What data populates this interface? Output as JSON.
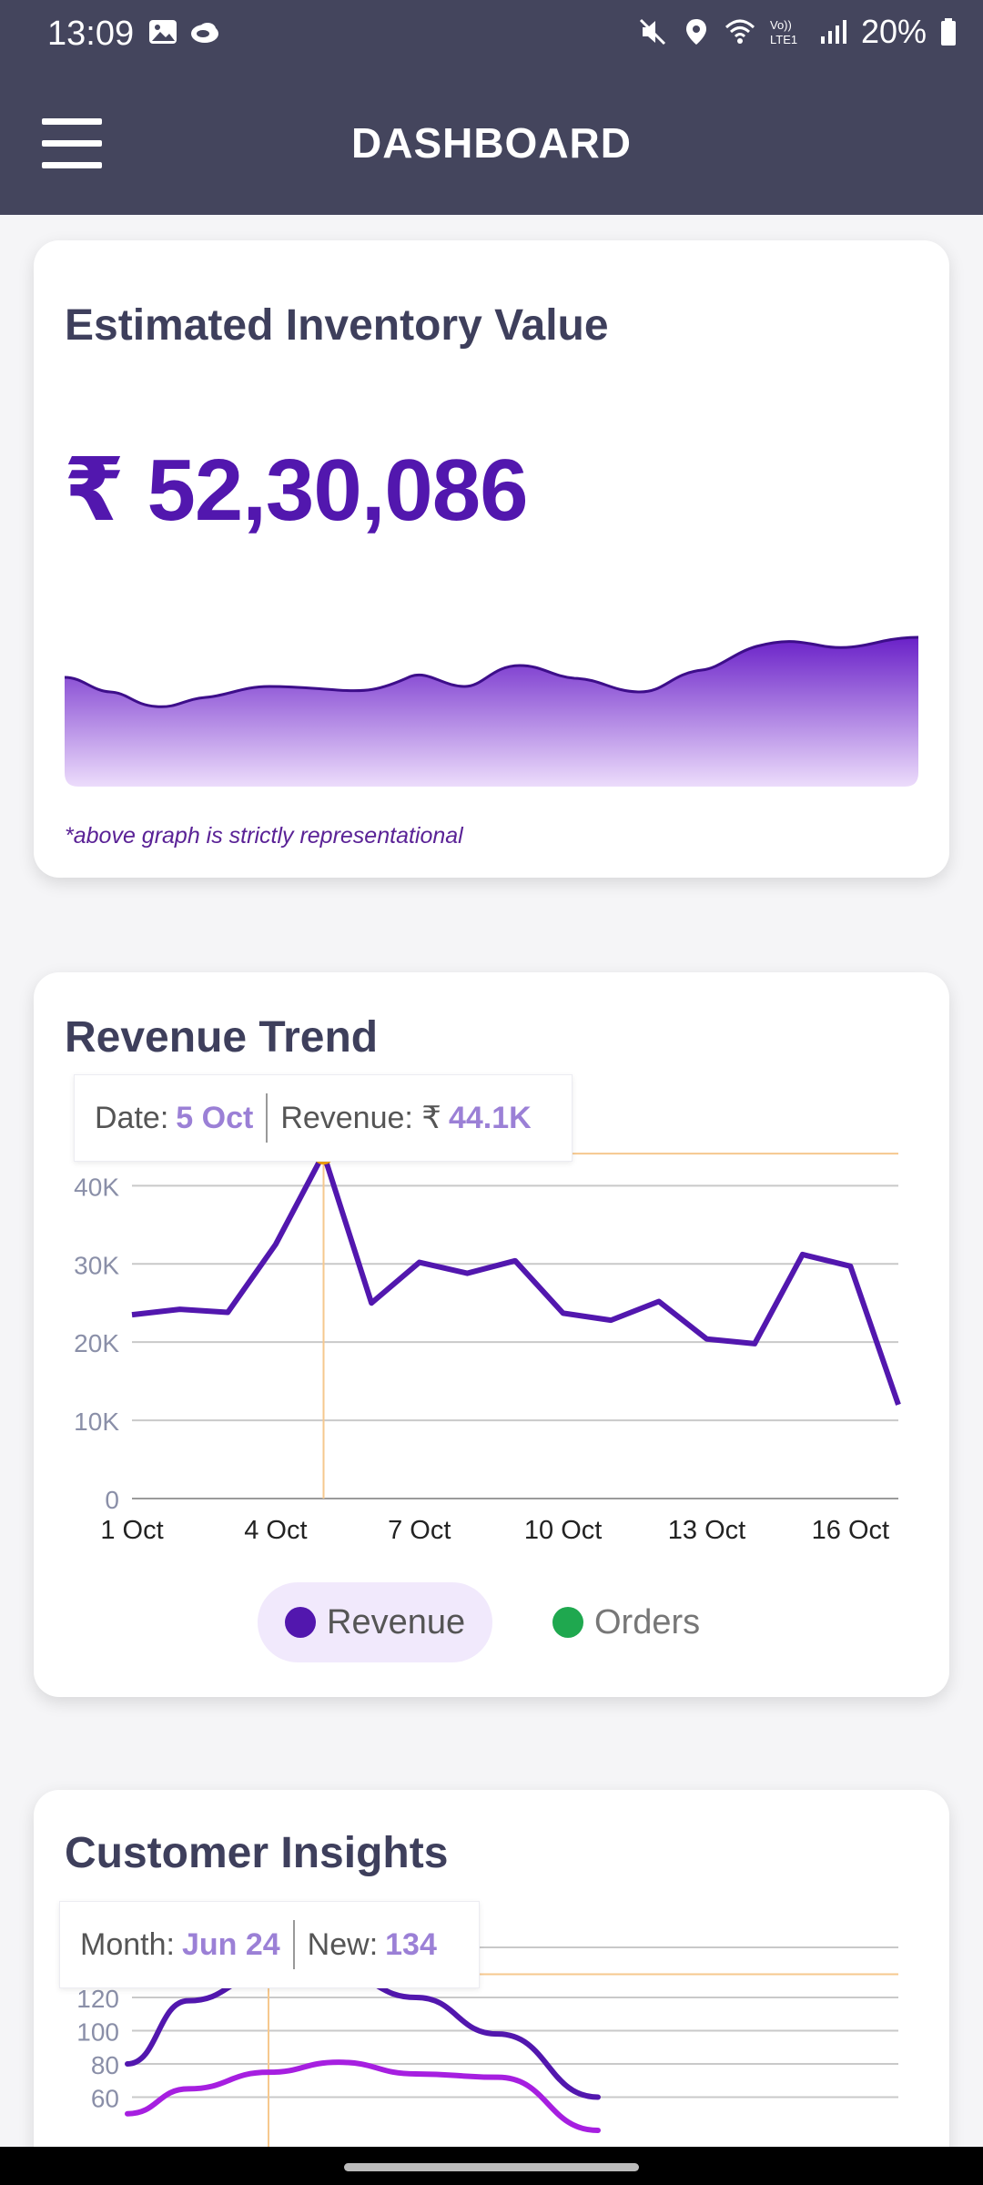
{
  "status_bar": {
    "time": "13:09",
    "battery": "20%",
    "icons": [
      "image-icon",
      "cloud-icon",
      "mute-icon",
      "location-icon",
      "wifi-icon",
      "volte-icon",
      "signal-icon",
      "battery-icon"
    ]
  },
  "app_bar": {
    "title": "DASHBOARD",
    "menu_icon": "hamburger-menu-icon"
  },
  "inventory": {
    "title": "Estimated Inventory Value",
    "value": "₹ 52,30,086",
    "note": "*above graph is strictly representational"
  },
  "revenue": {
    "title": "Revenue Trend",
    "tooltip": {
      "date_label": "Date:",
      "date_value": "5 Oct",
      "revenue_label": "Revenue: ₹",
      "revenue_value": "44.1K"
    },
    "legend": [
      {
        "label": "Revenue",
        "color": "#5217ae",
        "active": true
      },
      {
        "label": "Orders",
        "color": "#1fa84f",
        "active": false
      }
    ]
  },
  "customers": {
    "title": "Customer Insights",
    "tooltip": {
      "month_label": "Month:",
      "month_value": "Jun 24",
      "new_label": "New:",
      "new_value": "134"
    }
  },
  "chart_data": [
    {
      "type": "line",
      "title": "Revenue Trend",
      "x": [
        "1 Oct",
        "2 Oct",
        "3 Oct",
        "4 Oct",
        "5 Oct",
        "6 Oct",
        "7 Oct",
        "8 Oct",
        "9 Oct",
        "10 Oct",
        "11 Oct",
        "12 Oct",
        "13 Oct",
        "14 Oct",
        "15 Oct",
        "16 Oct",
        "17 Oct"
      ],
      "x_tick_labels": [
        "1 Oct",
        "4 Oct",
        "7 Oct",
        "10 Oct",
        "13 Oct",
        "16 Oct"
      ],
      "y_tick_labels": [
        "0",
        "10K",
        "20K",
        "30K",
        "40K"
      ],
      "ylim": [
        0,
        44000
      ],
      "series": [
        {
          "name": "Revenue",
          "color": "#5217ae",
          "values": [
            23500,
            24200,
            23800,
            32500,
            44100,
            25000,
            30200,
            28800,
            30400,
            23700,
            22800,
            25200,
            20400,
            19800,
            31200,
            29700,
            12000
          ]
        }
      ],
      "highlight": {
        "x": "5 Oct",
        "value": 44100
      },
      "grid": true
    },
    {
      "type": "line",
      "title": "Customer Insights",
      "y_tick_labels": [
        "60",
        "80",
        "100",
        "120"
      ],
      "ylim": [
        55,
        140
      ],
      "series": [
        {
          "color": "#5217ae",
          "values": [
            80,
            118,
            134,
            134,
            120,
            98,
            60
          ]
        },
        {
          "color": "#a61fe0",
          "values": [
            50,
            65,
            75,
            81,
            74,
            72,
            40
          ]
        }
      ],
      "highlight": {
        "x": "Jun 24",
        "value": 134
      },
      "grid": true
    }
  ]
}
